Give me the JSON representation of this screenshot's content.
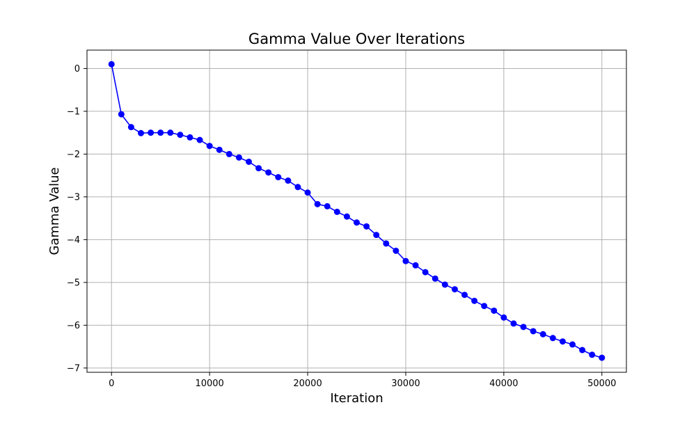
{
  "chart_data": {
    "type": "line",
    "title": "Gamma Value Over Iterations",
    "xlabel": "Iteration",
    "ylabel": "Gamma Value",
    "xlim": [
      -2500,
      52500
    ],
    "ylim": [
      -7.1,
      0.43
    ],
    "x_ticks": [
      0,
      10000,
      20000,
      30000,
      40000,
      50000
    ],
    "x_tick_labels": [
      "0",
      "10000",
      "20000",
      "30000",
      "40000",
      "50000"
    ],
    "y_ticks": [
      0,
      -1,
      -2,
      -3,
      -4,
      -5,
      -6,
      -7
    ],
    "y_tick_labels": [
      "0",
      "−1",
      "−2",
      "−3",
      "−4",
      "−5",
      "−6",
      "−7"
    ],
    "grid": true,
    "series": [
      {
        "color": "#0000ff",
        "marker": "circle",
        "x": [
          0,
          1000,
          2000,
          3000,
          4000,
          5000,
          6000,
          7000,
          8000,
          9000,
          10000,
          11000,
          12000,
          13000,
          14000,
          15000,
          16000,
          17000,
          18000,
          19000,
          20000,
          21000,
          22000,
          23000,
          24000,
          25000,
          26000,
          27000,
          28000,
          29000,
          30000,
          31000,
          32000,
          33000,
          34000,
          35000,
          36000,
          37000,
          38000,
          39000,
          40000,
          41000,
          42000,
          43000,
          44000,
          45000,
          46000,
          47000,
          48000,
          49000,
          50000
        ],
        "y": [
          0.1,
          -1.07,
          -1.37,
          -1.51,
          -1.5,
          -1.5,
          -1.5,
          -1.55,
          -1.61,
          -1.67,
          -1.81,
          -1.9,
          -2.0,
          -2.08,
          -2.18,
          -2.33,
          -2.43,
          -2.54,
          -2.62,
          -2.77,
          -2.9,
          -3.17,
          -3.22,
          -3.35,
          -3.46,
          -3.6,
          -3.69,
          -3.89,
          -4.09,
          -4.26,
          -4.5,
          -4.6,
          -4.76,
          -4.91,
          -5.05,
          -5.16,
          -5.29,
          -5.43,
          -5.55,
          -5.66,
          -5.82,
          -5.96,
          -6.04,
          -6.14,
          -6.21,
          -6.3,
          -6.38,
          -6.45,
          -6.58,
          -6.69,
          -6.76
        ]
      }
    ]
  }
}
